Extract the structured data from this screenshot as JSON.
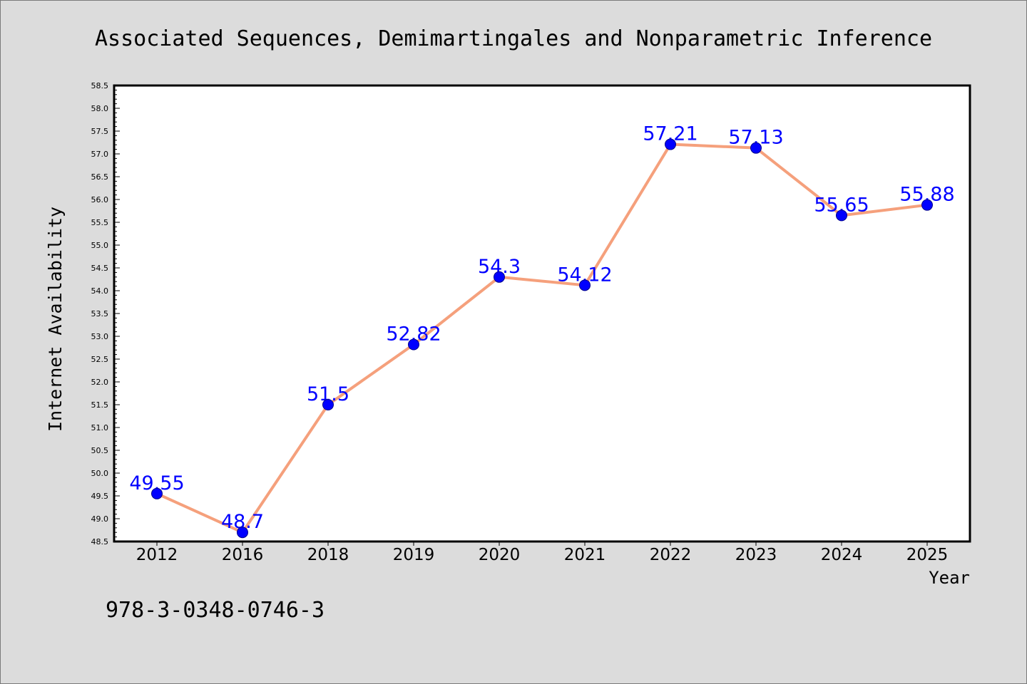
{
  "colors": {
    "background": "#dcdcdc",
    "frame": "#7a7a7a",
    "plot_background": "#ffffff",
    "plot_border": "#000000",
    "line": "#f5a07c",
    "marker": "#0000ff",
    "marker_edge": "#00008b",
    "data_label": "#0000ff",
    "text": "#000000"
  },
  "chart_data": {
    "type": "line",
    "title": "Associated Sequences, Demimartingales and Nonparametric Inference",
    "xlabel": "Year",
    "ylabel": "Internet Availability",
    "categories": [
      "2012",
      "2016",
      "2018",
      "2019",
      "2020",
      "2021",
      "2022",
      "2023",
      "2024",
      "2025"
    ],
    "series": [
      {
        "values": [
          49.55,
          48.7,
          51.5,
          52.82,
          54.3,
          54.12,
          57.21,
          57.13,
          55.65,
          55.88
        ],
        "marker": "circle",
        "data_labels": true
      }
    ],
    "ylim": [
      48.5,
      58.5
    ],
    "yticks": [
      "48.5",
      "49.0",
      "49.5",
      "50.0",
      "50.5",
      "51.0",
      "51.5",
      "52.0",
      "52.5",
      "53.0",
      "53.5",
      "54.0",
      "54.5",
      "55.0",
      "55.5",
      "56.0",
      "56.5",
      "57.0",
      "57.5",
      "58.0",
      "58.5"
    ],
    "ytick_minor_step": 0.1,
    "grid": false,
    "legend": "none"
  },
  "footer": {
    "code": "978-3-0348-0746-3"
  }
}
